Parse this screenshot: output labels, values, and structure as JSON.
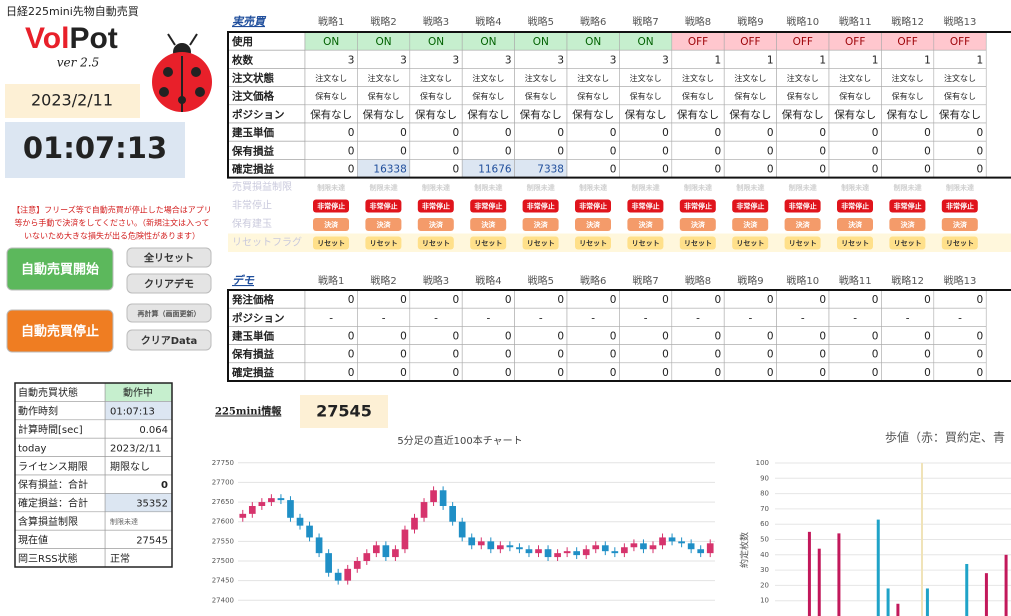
{
  "header": {
    "app_title": "日経225mini先物自動売買",
    "logo_vol": "Vol",
    "logo_pot": "Pot",
    "version": "ver 2.5",
    "date": "2023/2/11",
    "time": "01:07:13"
  },
  "notice": [
    "【注意】フリーズ等で自動売買が停止した場合はアプリ",
    "等から手動で決済をしてください。（新規注文は入って",
    "いないため大きな損失が出る危険性があります）"
  ],
  "buttons": {
    "start": "自動売買開始",
    "stop": "自動売買停止",
    "reset_all": "全リセット",
    "clear_demo": "クリアデモ",
    "recalc": "再計算（画面更新）",
    "clear_data": "クリアData"
  },
  "status": [
    [
      "自動売買状態",
      "動作中"
    ],
    [
      "動作時刻",
      "01:07:13"
    ],
    [
      "計算時間[sec]",
      0.064
    ],
    [
      "today",
      "2023/2/11"
    ],
    [
      "ライセンス期限",
      "期限なし"
    ],
    [
      "保有損益：合計",
      0
    ],
    [
      "確定損益：合計",
      35352
    ],
    [
      "含算損益制限",
      "制限未達"
    ],
    [
      "現在値",
      27545
    ],
    [
      "岡三RSS状態",
      "正常"
    ]
  ],
  "real": {
    "title": "実売買",
    "strategies": [
      "戦略1",
      "戦略2",
      "戦略3",
      "戦略4",
      "戦略5",
      "戦略6",
      "戦略7",
      "戦略8",
      "戦略9",
      "戦略10",
      "戦略11",
      "戦略12",
      "戦略13"
    ],
    "rows": [
      {
        "label": "使用",
        "cells": [
          "ON",
          "ON",
          "ON",
          "ON",
          "ON",
          "ON",
          "ON",
          "OFF",
          "OFF",
          "OFF",
          "OFF",
          "OFF",
          "OFF"
        ]
      },
      {
        "label": "枚数",
        "cells": [
          3,
          3,
          3,
          3,
          3,
          3,
          3,
          1,
          1,
          1,
          1,
          1,
          1
        ]
      },
      {
        "label": "注文状態",
        "cells": [
          "注文なし",
          "注文なし",
          "注文なし",
          "注文なし",
          "注文なし",
          "注文なし",
          "注文なし",
          "注文なし",
          "注文なし",
          "注文なし",
          "注文なし",
          "注文なし",
          "注文なし"
        ]
      },
      {
        "label": "注文価格",
        "cells": [
          "保有なし",
          "保有なし",
          "保有なし",
          "保有なし",
          "保有なし",
          "保有なし",
          "保有なし",
          "保有なし",
          "保有なし",
          "保有なし",
          "保有なし",
          "保有なし",
          "保有なし"
        ]
      },
      {
        "label": "ポジション",
        "cells": [
          "保有なし",
          "保有なし",
          "保有なし",
          "保有なし",
          "保有なし",
          "保有なし",
          "保有なし",
          "保有なし",
          "保有なし",
          "保有なし",
          "保有なし",
          "保有なし",
          "保有なし"
        ]
      },
      {
        "label": "建玉単価",
        "cells": [
          0,
          0,
          0,
          0,
          0,
          0,
          0,
          0,
          0,
          0,
          0,
          0,
          0
        ]
      },
      {
        "label": "保有損益",
        "cells": [
          0,
          0,
          0,
          0,
          0,
          0,
          0,
          0,
          0,
          0,
          0,
          0,
          0
        ]
      },
      {
        "label": "確定損益",
        "cells": [
          0,
          16338,
          0,
          11676,
          7338,
          0,
          0,
          0,
          0,
          0,
          0,
          0,
          0
        ]
      }
    ],
    "controls": [
      {
        "label": "売買損益制限",
        "cells": [
          "制限未達",
          "制限未達",
          "制限未達",
          "制限未達",
          "制限未達",
          "制限未達",
          "制限未達",
          "制限未達",
          "制限未達",
          "制限未達",
          "制限未達",
          "制限未達",
          "制限未達"
        ]
      },
      {
        "label": "非常停止",
        "cells": [
          "非常停止",
          "非常停止",
          "非常停止",
          "非常停止",
          "非常停止",
          "非常停止",
          "非常停止",
          "非常停止",
          "非常停止",
          "非常停止",
          "非常停止",
          "非常停止",
          "非常停止"
        ]
      },
      {
        "label": "保有建玉",
        "cells": [
          "決済",
          "決済",
          "決済",
          "決済",
          "決済",
          "決済",
          "決済",
          "決済",
          "決済",
          "決済",
          "決済",
          "決済",
          "決済"
        ]
      },
      {
        "label": "リセットフラグ",
        "cells": [
          "リセット",
          "リセット",
          "リセット",
          "リセット",
          "リセット",
          "リセット",
          "リセット",
          "リセット",
          "リセット",
          "リセット",
          "リセット",
          "リセット",
          "リセット"
        ]
      }
    ]
  },
  "demo": {
    "title": "デモ",
    "strategies": [
      "戦略1",
      "戦略2",
      "戦略3",
      "戦略4",
      "戦略5",
      "戦略6",
      "戦略7",
      "戦略8",
      "戦略9",
      "戦略10",
      "戦略11",
      "戦略12",
      "戦略13"
    ],
    "rows": [
      {
        "label": "発注価格",
        "cells": [
          0,
          0,
          0,
          0,
          0,
          0,
          0,
          0,
          0,
          0,
          0,
          0,
          0
        ]
      },
      {
        "label": "ポジション",
        "cells": [
          "-",
          "-",
          "-",
          "-",
          "-",
          "-",
          "-",
          "-",
          "-",
          "-",
          "-",
          "-",
          "-"
        ]
      },
      {
        "label": "建玉単価",
        "cells": [
          0,
          0,
          0,
          0,
          0,
          0,
          0,
          0,
          0,
          0,
          0,
          0,
          0
        ]
      },
      {
        "label": "保有損益",
        "cells": [
          0,
          0,
          0,
          0,
          0,
          0,
          0,
          0,
          0,
          0,
          0,
          0,
          0
        ]
      },
      {
        "label": "確定損益",
        "cells": [
          0,
          0,
          0,
          0,
          0,
          0,
          0,
          0,
          0,
          0,
          0,
          0,
          0
        ]
      }
    ]
  },
  "mini_info": {
    "label": "225mini情報",
    "value": 27545
  },
  "chart_data": [
    {
      "type": "candlestick",
      "title": "5分足の直近100本チャート",
      "up_color": "#d6336c",
      "down_color": "#1f8fc6",
      "open": [
        27610,
        27620,
        27640,
        27650,
        27660,
        27655,
        27610,
        27590,
        27560,
        27520,
        27470,
        27450,
        27480,
        27500,
        27520,
        27540,
        27510,
        27530,
        27580,
        27610,
        27650,
        27680,
        27640,
        27600,
        27560,
        27540,
        27550,
        27530,
        27540,
        27535,
        27530,
        27520,
        27530,
        27510,
        27520,
        27525,
        27515,
        27530,
        27540,
        27525,
        27520,
        27535,
        27545,
        27530,
        27540,
        27560,
        27550,
        27545,
        27530,
        27520
      ],
      "high": [
        27630,
        27650,
        27660,
        27670,
        27670,
        27665,
        27620,
        27600,
        27570,
        27530,
        27480,
        27490,
        27510,
        27530,
        27550,
        27550,
        27540,
        27590,
        27620,
        27660,
        27690,
        27690,
        27650,
        27610,
        27570,
        27560,
        27560,
        27550,
        27550,
        27545,
        27540,
        27540,
        27540,
        27530,
        27535,
        27535,
        27540,
        27550,
        27550,
        27535,
        27545,
        27555,
        27555,
        27550,
        27570,
        27570,
        27560,
        27555,
        27540,
        27555
      ],
      "low": [
        27600,
        27610,
        27630,
        27640,
        27645,
        27600,
        27580,
        27550,
        27510,
        27460,
        27440,
        27440,
        27470,
        27490,
        27510,
        27500,
        27500,
        27520,
        27570,
        27600,
        27640,
        27630,
        27590,
        27550,
        27530,
        27530,
        27520,
        27520,
        27525,
        27520,
        27510,
        27510,
        27500,
        27500,
        27510,
        27505,
        27505,
        27520,
        27515,
        27510,
        27510,
        27525,
        27520,
        27520,
        27530,
        27540,
        27535,
        27520,
        27510,
        27510
      ],
      "close": [
        27620,
        27640,
        27650,
        27660,
        27655,
        27610,
        27590,
        27560,
        27520,
        27470,
        27450,
        27480,
        27500,
        27520,
        27540,
        27510,
        27530,
        27580,
        27610,
        27650,
        27680,
        27640,
        27600,
        27560,
        27540,
        27550,
        27530,
        27540,
        27535,
        27530,
        27520,
        27530,
        27510,
        27520,
        27525,
        27515,
        27530,
        27540,
        27525,
        27520,
        27535,
        27545,
        27530,
        27540,
        27560,
        27550,
        27545,
        27530,
        27520,
        27545
      ],
      "ylim": [
        27360,
        27780
      ],
      "yticks": [
        27400,
        27450,
        27500,
        27550,
        27600,
        27650,
        27700,
        27750
      ],
      "grid": true
    },
    {
      "type": "bar",
      "title": "歩値（赤：買約定、青",
      "y_label": "約定枚数",
      "categories": [
        null,
        null,
        null,
        null,
        null,
        null,
        null,
        null,
        null,
        null,
        null,
        null,
        null,
        null,
        null,
        null,
        null,
        null,
        null,
        null,
        null,
        null,
        null,
        null
      ],
      "series": [
        {
          "color": "#c2185b",
          "values": [
            null,
            null,
            null,
            55,
            44,
            null,
            54,
            null,
            null,
            null,
            null,
            null,
            8,
            null,
            null,
            null,
            null,
            null,
            null,
            null,
            null,
            28,
            null,
            40
          ]
        },
        {
          "color": "#1fa3c8",
          "values": [
            null,
            null,
            null,
            null,
            null,
            null,
            null,
            null,
            null,
            null,
            63,
            18,
            null,
            null,
            null,
            18,
            null,
            null,
            null,
            34,
            null,
            null,
            null,
            null
          ]
        }
      ],
      "ylim": [
        0,
        100
      ],
      "yticks": [
        10,
        20,
        30,
        40,
        50,
        60,
        70,
        80,
        90,
        100
      ],
      "grid": true
    }
  ]
}
